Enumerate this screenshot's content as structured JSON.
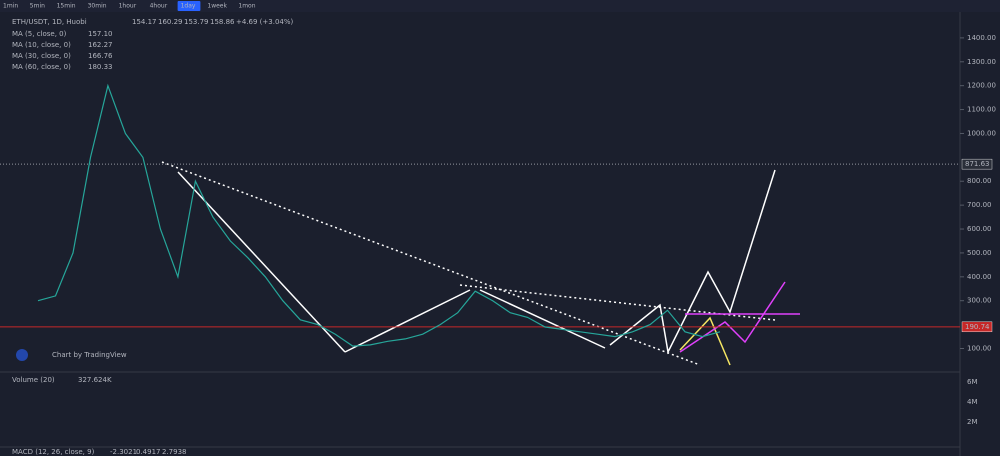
{
  "toolbar": {
    "intervals": [
      "1min",
      "5min",
      "15min",
      "30min",
      "1hour",
      "4hour",
      "1day",
      "1week",
      "1mon"
    ],
    "active": "1day"
  },
  "header": {
    "symbol": "ETH/USDT, 1D, Huobi",
    "quotes": [
      "154.17",
      "160.29",
      "153.79",
      "158.86",
      "+4.69 (+3.04%)"
    ]
  },
  "indicators": [
    {
      "name": "MA (5, close, 0)",
      "value": "157.10",
      "color": "#ffffff"
    },
    {
      "name": "MA (10, close, 0)",
      "value": "162.27",
      "color": "#f5e663"
    },
    {
      "name": "MA (30, close, 0)",
      "value": "166.76",
      "color": "#e040fb"
    },
    {
      "name": "MA (60, close, 0)",
      "value": "180.33",
      "color": "#4dd0e1"
    }
  ],
  "price_tags": [
    {
      "value": 871.63,
      "color": "#2a2e39"
    },
    {
      "value": 190.74,
      "color": "#c62828"
    }
  ],
  "watermark": "Chart by TradingView",
  "volume": {
    "title": "Volume (20)",
    "value": "327.624K",
    "ticks": [
      "6M",
      "4M",
      "2M"
    ]
  },
  "macd": {
    "title": "MACD (12, 26, close, 9)",
    "values": [
      "-2.3021",
      "0.4917",
      "2.7938"
    ]
  },
  "chart_data": {
    "type": "line",
    "color": "#26a69a",
    "categories": [
      null,
      null,
      null,
      null,
      null,
      null,
      null,
      null,
      null,
      null,
      null,
      null,
      null,
      null,
      null,
      null,
      null,
      null,
      null,
      null,
      null,
      null,
      null,
      null,
      null,
      null,
      null,
      null,
      null,
      null,
      null,
      null,
      null,
      null,
      null,
      null,
      null,
      null,
      null,
      null
    ],
    "values": [
      300,
      320,
      500,
      900,
      1200,
      1000,
      900,
      600,
      400,
      800,
      650,
      550,
      480,
      400,
      300,
      220,
      200,
      160,
      110,
      115,
      130,
      140,
      160,
      200,
      250,
      340,
      300,
      250,
      230,
      190,
      180,
      170,
      160,
      150,
      170,
      200,
      260,
      170,
      150,
      170
    ],
    "ylim": [
      10,
      1500
    ],
    "yticks": [
      {
        "value": 1400,
        "label": "1400.00"
      },
      {
        "value": 1300,
        "label": "1300.00"
      },
      {
        "value": 1200,
        "label": "1200.00"
      },
      {
        "value": 1100,
        "label": "1100.00"
      },
      {
        "value": 1000,
        "label": "1000.00"
      },
      {
        "value": 800,
        "label": "800.00"
      },
      {
        "value": 700,
        "label": "700.00"
      },
      {
        "value": 600,
        "label": "600.00"
      },
      {
        "value": 500,
        "label": "500.00"
      },
      {
        "value": 400,
        "label": "400.00"
      },
      {
        "value": 300,
        "label": "300.00"
      },
      {
        "value": 100,
        "label": "100.00"
      }
    ]
  }
}
